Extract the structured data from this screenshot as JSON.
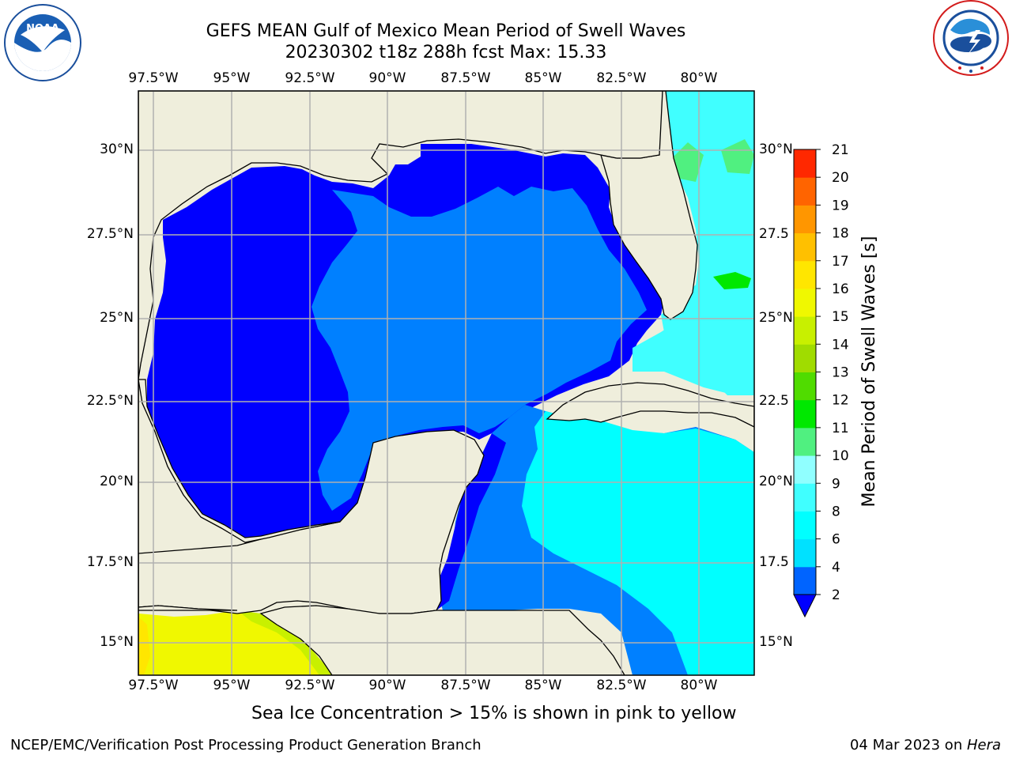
{
  "header": {
    "title_line1": "GEFS MEAN Gulf of Mexico Mean Period of Swell Waves",
    "title_line2": "20230302 t18z 288h fcst   Max: 15.33"
  },
  "logos": {
    "left": {
      "icon": "noaa-logo",
      "text": "NOAA",
      "ring_text": "NATIONAL OCEANIC AND ATMOSPHERIC ADMINISTRATION · U.S. DEPARTMENT OF COMMERCE"
    },
    "right": {
      "icon": "nws-logo",
      "ring_text": "NATIONAL WEATHER SERVICE"
    }
  },
  "map": {
    "lon_ticks": [
      "97.5°W",
      "95°W",
      "92.5°W",
      "90°W",
      "87.5°W",
      "85°W",
      "82.5°W",
      "80°W"
    ],
    "lat_ticks_left": [
      "30°N",
      "27.5°N",
      "25°N",
      "22.5°N",
      "20°N",
      "17.5°N",
      "15°N"
    ],
    "lat_ticks_right": [
      "30°N",
      "27.5",
      "25°N",
      "22.5",
      "20°N",
      "17.5",
      "15°N"
    ],
    "colors": {
      "land": "#efeedc",
      "grid": "#b0b0b0",
      "coast": "#000000"
    }
  },
  "colorbar": {
    "label": "Mean Period of Swell Waves [s]",
    "ticks": [
      "2",
      "4",
      "6",
      "8",
      "9",
      "10",
      "11",
      "12",
      "13",
      "14",
      "15",
      "16",
      "17",
      "18",
      "19",
      "20",
      "21"
    ],
    "colors": [
      "#0064ff",
      "#00e1ff",
      "#00ffff",
      "#40ffff",
      "#90ffff",
      "#50f080",
      "#00e800",
      "#50dc00",
      "#a0dc00",
      "#c8f000",
      "#f0f800",
      "#ffe600",
      "#ffc000",
      "#ff9600",
      "#ff6400",
      "#ff2800"
    ],
    "extend_min_color": "#0000ff"
  },
  "note": "Sea Ice Concentration > 15% is shown in pink to yellow",
  "footer": {
    "left": "NCEP/EMC/Verification Post Processing Product Generation Branch",
    "right_date": "04 Mar 2023 on ",
    "right_host": "Hera"
  }
}
